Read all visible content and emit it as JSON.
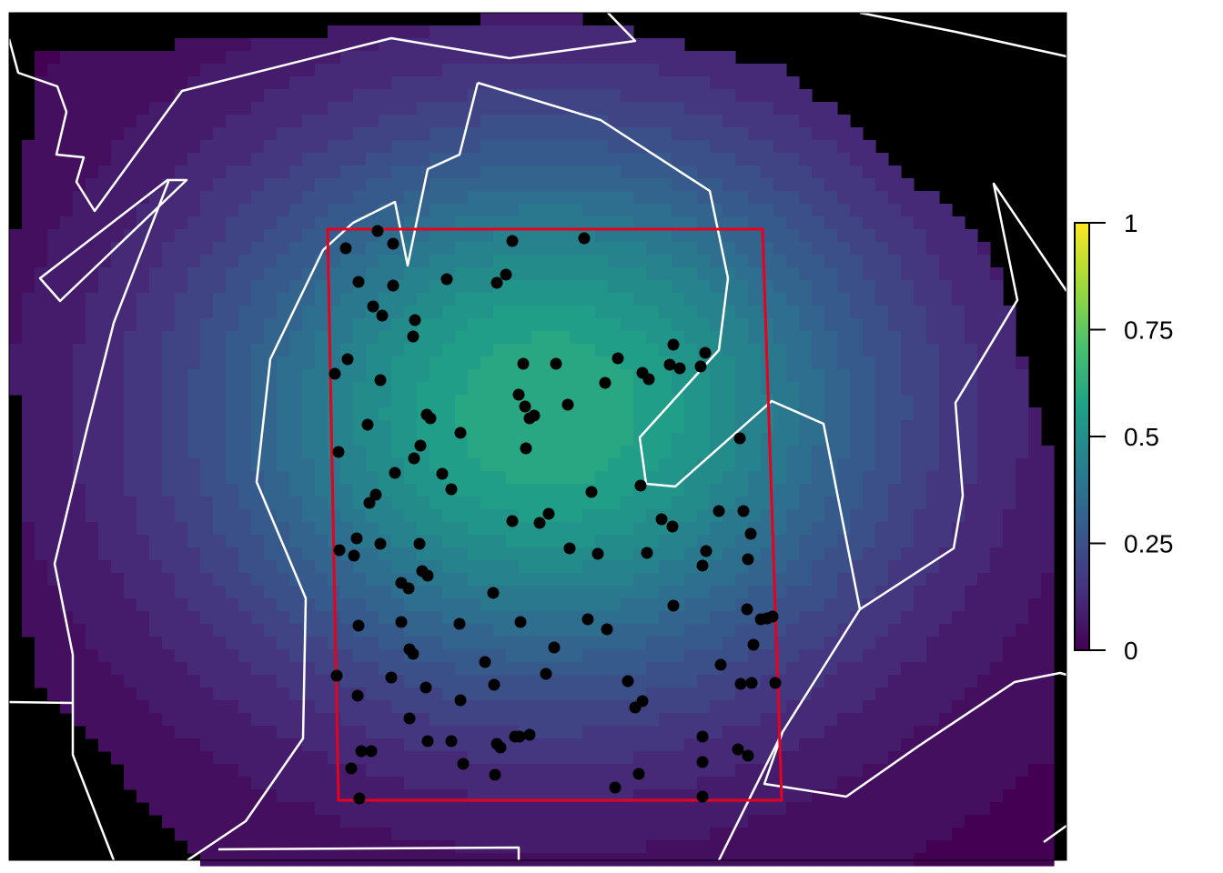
{
  "chart_data": {
    "type": "heatmap",
    "title": "",
    "xlabel": "",
    "ylabel": "",
    "grid": false,
    "legend": {
      "type": "colorbar",
      "placement": "right",
      "range": [
        0,
        1
      ],
      "ticks": [
        {
          "value": 0,
          "label": "0"
        },
        {
          "value": 0.25,
          "label": "0.25"
        },
        {
          "value": 0.5,
          "label": "0.5"
        },
        {
          "value": 0.75,
          "label": "0.75"
        },
        {
          "value": 1,
          "label": "1"
        }
      ]
    },
    "colormap": [
      "#440154",
      "#46327e",
      "#365c8d",
      "#277f8e",
      "#1fa187",
      "#4ac16d",
      "#a0da39",
      "#fde725"
    ],
    "background_color": "#000000",
    "outline_color": "#ffffff",
    "box_color": "#e8001c",
    "point_color": "#000000",
    "surface": {
      "peak_value": 0.62,
      "peak_location": [
        0.51,
        0.47
      ],
      "decay": 0.23
    },
    "point_count": 158
  }
}
